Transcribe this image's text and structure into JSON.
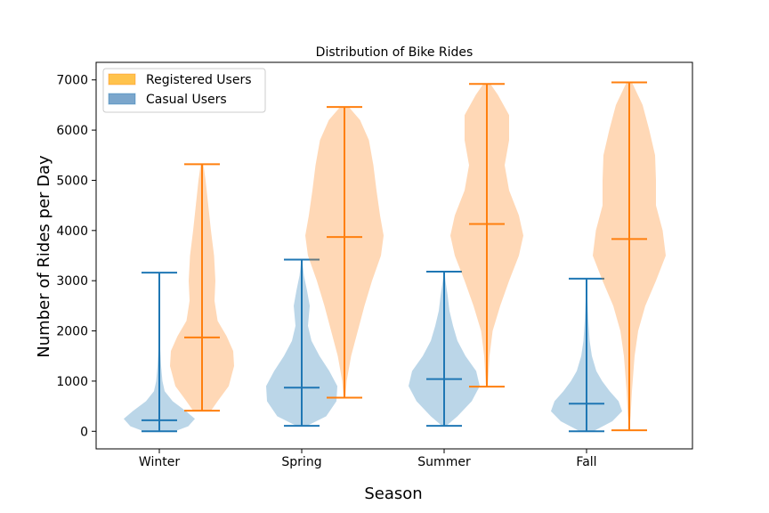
{
  "chart_data": {
    "type": "violin",
    "title": "Distribution of Bike Rides",
    "xlabel": "Season",
    "ylabel": "Number of Rides per Day",
    "categories": [
      "Winter",
      "Spring",
      "Summer",
      "Fall"
    ],
    "ylim": [
      -350,
      7350
    ],
    "yticks": [
      0,
      1000,
      2000,
      3000,
      4000,
      5000,
      6000,
      7000
    ],
    "legend": {
      "position": "top-left"
    },
    "series": [
      {
        "name": "Registered Users",
        "color": "#ff7f0e",
        "legend_color": "#ffc34d",
        "violins": [
          {
            "category": "Winter",
            "min": 410,
            "median": 1870,
            "max": 5320,
            "density": [
              [
                410,
                0.2
              ],
              [
                600,
                0.35
              ],
              [
                900,
                0.6
              ],
              [
                1300,
                0.72
              ],
              [
                1600,
                0.7
              ],
              [
                1900,
                0.55
              ],
              [
                2200,
                0.35
              ],
              [
                2600,
                0.28
              ],
              [
                3000,
                0.3
              ],
              [
                3500,
                0.27
              ],
              [
                4000,
                0.2
              ],
              [
                4500,
                0.14
              ],
              [
                5000,
                0.08
              ],
              [
                5320,
                0.03
              ]
            ]
          },
          {
            "category": "Spring",
            "min": 670,
            "median": 3870,
            "max": 6460,
            "density": [
              [
                670,
                0.02
              ],
              [
                1000,
                0.05
              ],
              [
                1500,
                0.15
              ],
              [
                2000,
                0.3
              ],
              [
                2500,
                0.45
              ],
              [
                3000,
                0.62
              ],
              [
                3500,
                0.82
              ],
              [
                3900,
                0.88
              ],
              [
                4300,
                0.8
              ],
              [
                4800,
                0.72
              ],
              [
                5300,
                0.65
              ],
              [
                5800,
                0.55
              ],
              [
                6200,
                0.35
              ],
              [
                6460,
                0.1
              ]
            ]
          },
          {
            "category": "Summer",
            "min": 890,
            "median": 4130,
            "max": 6920,
            "density": [
              [
                890,
                0.02
              ],
              [
                1500,
                0.06
              ],
              [
                2000,
                0.13
              ],
              [
                2500,
                0.3
              ],
              [
                3000,
                0.5
              ],
              [
                3500,
                0.72
              ],
              [
                3900,
                0.82
              ],
              [
                4300,
                0.72
              ],
              [
                4800,
                0.5
              ],
              [
                5300,
                0.4
              ],
              [
                5800,
                0.5
              ],
              [
                6300,
                0.5
              ],
              [
                6700,
                0.25
              ],
              [
                6920,
                0.08
              ]
            ]
          },
          {
            "category": "Fall",
            "min": 20,
            "median": 3830,
            "max": 6950,
            "density": [
              [
                20,
                0.0
              ],
              [
                300,
                0.03
              ],
              [
                800,
                0.06
              ],
              [
                1500,
                0.12
              ],
              [
                2000,
                0.2
              ],
              [
                2500,
                0.36
              ],
              [
                3000,
                0.6
              ],
              [
                3500,
                0.82
              ],
              [
                4000,
                0.75
              ],
              [
                4500,
                0.6
              ],
              [
                5000,
                0.6
              ],
              [
                5500,
                0.58
              ],
              [
                6000,
                0.45
              ],
              [
                6500,
                0.3
              ],
              [
                6950,
                0.06
              ]
            ]
          }
        ]
      },
      {
        "name": "Casual Users",
        "color": "#1f77b4",
        "legend_color": "#7ba6cc",
        "violins": [
          {
            "category": "Winter",
            "min": 0,
            "median": 220,
            "max": 3160,
            "density": [
              [
                0,
                0.35
              ],
              [
                100,
                0.65
              ],
              [
                250,
                0.8
              ],
              [
                400,
                0.6
              ],
              [
                600,
                0.3
              ],
              [
                800,
                0.12
              ],
              [
                1000,
                0.07
              ],
              [
                1300,
                0.04
              ],
              [
                1800,
                0.01
              ],
              [
                2500,
                0.005
              ],
              [
                3160,
                0.0
              ]
            ]
          },
          {
            "category": "Spring",
            "min": 110,
            "median": 870,
            "max": 3420,
            "density": [
              [
                110,
                0.12
              ],
              [
                300,
                0.55
              ],
              [
                600,
                0.78
              ],
              [
                900,
                0.8
              ],
              [
                1200,
                0.62
              ],
              [
                1500,
                0.4
              ],
              [
                1800,
                0.22
              ],
              [
                2100,
                0.14
              ],
              [
                2500,
                0.18
              ],
              [
                2800,
                0.12
              ],
              [
                3100,
                0.05
              ],
              [
                3420,
                0.01
              ]
            ]
          },
          {
            "category": "Summer",
            "min": 110,
            "median": 1040,
            "max": 3180,
            "density": [
              [
                110,
                0.05
              ],
              [
                300,
                0.3
              ],
              [
                600,
                0.62
              ],
              [
                900,
                0.8
              ],
              [
                1200,
                0.72
              ],
              [
                1500,
                0.48
              ],
              [
                1800,
                0.3
              ],
              [
                2100,
                0.2
              ],
              [
                2400,
                0.12
              ],
              [
                2700,
                0.08
              ],
              [
                3000,
                0.03
              ],
              [
                3180,
                0.01
              ]
            ]
          },
          {
            "category": "Fall",
            "min": 0,
            "median": 550,
            "max": 3040,
            "density": [
              [
                0,
                0.15
              ],
              [
                200,
                0.58
              ],
              [
                400,
                0.8
              ],
              [
                600,
                0.72
              ],
              [
                800,
                0.52
              ],
              [
                1000,
                0.35
              ],
              [
                1200,
                0.22
              ],
              [
                1500,
                0.12
              ],
              [
                1800,
                0.07
              ],
              [
                2200,
                0.04
              ],
              [
                2600,
                0.02
              ],
              [
                3040,
                0.0
              ]
            ]
          }
        ]
      }
    ]
  }
}
